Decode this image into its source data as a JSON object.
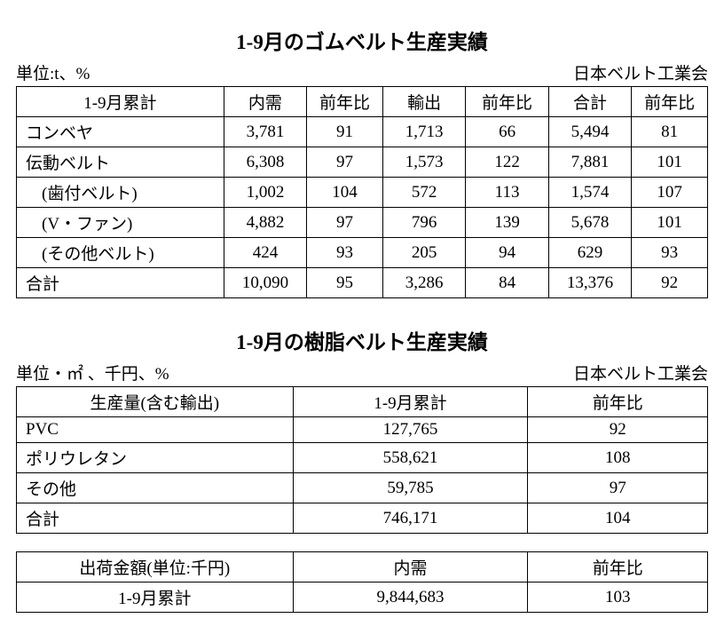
{
  "table1": {
    "title": "1-9月のゴムベルト生産実績",
    "unit": "単位:t、%",
    "org": "日本ベルト工業会",
    "colWidths": [
      "30%",
      "12%",
      "11%",
      "12%",
      "12%",
      "12%",
      "11%"
    ],
    "headers": [
      "1-9月累計",
      "内需",
      "前年比",
      "輸出",
      "前年比",
      "合計",
      "前年比"
    ],
    "rows": [
      {
        "label": "コンベヤ",
        "indent": false,
        "cells": [
          "3,781",
          "91",
          "1,713",
          "66",
          "5,494",
          "81"
        ]
      },
      {
        "label": "伝動ベルト",
        "indent": false,
        "cells": [
          "6,308",
          "97",
          "1,573",
          "122",
          "7,881",
          "101"
        ]
      },
      {
        "label": "(歯付ベルト)",
        "indent": true,
        "cells": [
          "1,002",
          "104",
          "572",
          "113",
          "1,574",
          "107"
        ]
      },
      {
        "label": "(V・ファン)",
        "indent": true,
        "cells": [
          "4,882",
          "97",
          "796",
          "139",
          "5,678",
          "101"
        ]
      },
      {
        "label": "(その他ベルト)",
        "indent": true,
        "cells": [
          "424",
          "93",
          "205",
          "94",
          "629",
          "93"
        ]
      },
      {
        "label": "合計",
        "indent": false,
        "cells": [
          "10,090",
          "95",
          "3,286",
          "84",
          "13,376",
          "92"
        ]
      }
    ]
  },
  "table2": {
    "title": "1-9月の樹脂ベルト生産実績",
    "unit": "単位・㎡ 、千円、%",
    "org": "日本ベルト工業会",
    "colWidths": [
      "40%",
      "34%",
      "26%"
    ],
    "headers": [
      "生産量(含む輸出)",
      "1-9月累計",
      "前年比"
    ],
    "rows": [
      {
        "label": "PVC",
        "cells": [
          "127,765",
          "92"
        ]
      },
      {
        "label": "ポリウレタン",
        "cells": [
          "558,621",
          "108"
        ]
      },
      {
        "label": "その他",
        "cells": [
          "59,785",
          "97"
        ]
      },
      {
        "label": "合計",
        "cells": [
          "746,171",
          "104"
        ]
      }
    ]
  },
  "table3": {
    "colWidths": [
      "40%",
      "34%",
      "26%"
    ],
    "headers": [
      "出荷金額(単位:千円)",
      "内需",
      "前年比"
    ],
    "rows": [
      {
        "label": "1-9月累計",
        "cells": [
          "9,844,683",
          "103"
        ]
      }
    ]
  }
}
